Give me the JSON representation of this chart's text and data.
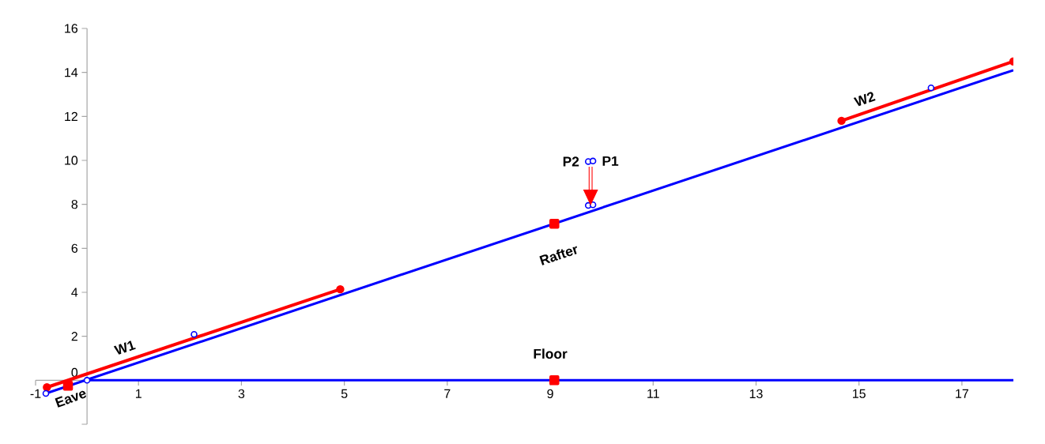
{
  "chart_data": {
    "type": "line",
    "xlim": [
      -1,
      18
    ],
    "ylim": [
      -2,
      16
    ],
    "xticks": [
      -1,
      1,
      3,
      5,
      7,
      9,
      11,
      13,
      15,
      17
    ],
    "yticks": [
      {
        "value": -2,
        "label": null
      },
      0,
      2,
      4,
      6,
      8,
      10,
      12,
      14,
      16
    ],
    "grid": false,
    "series": [
      {
        "name": "Rafter",
        "color": "#0000ff",
        "x": [
          -0.8,
          18
        ],
        "values": [
          -0.6,
          14.1
        ],
        "marker": "none"
      },
      {
        "name": "Floor",
        "color": "#0000ff",
        "x": [
          0,
          18
        ],
        "values": [
          0,
          0
        ],
        "marker": "none"
      },
      {
        "name": "W1",
        "color": "#ff0000",
        "x": [
          -0.78,
          4.92
        ],
        "values": [
          -0.32,
          4.14
        ],
        "marker": "circle"
      },
      {
        "name": "W2",
        "color": "#ff0000",
        "x": [
          14.66,
          18
        ],
        "values": [
          11.8,
          14.5
        ],
        "marker": "circle"
      },
      {
        "type": "scatter",
        "color": "#0000ff",
        "x": [
          -0.8,
          0,
          2.08,
          16.4,
          9.74,
          9.83,
          9.74,
          9.83
        ],
        "values": [
          -0.6,
          0,
          2.09,
          13.3,
          9.95,
          9.97,
          7.95,
          7.98
        ],
        "marker": "circle"
      },
      {
        "type": "scatter",
        "color": "#ff0000",
        "x": [
          -0.37,
          9.08,
          9.08
        ],
        "values": [
          -0.25,
          7.12,
          0
        ],
        "marker": "square"
      }
    ],
    "annotations": [
      {
        "text": "Eave",
        "x": -0.8,
        "y": -0.6
      },
      {
        "text": "P2",
        "x": 9.74,
        "y": 9.95
      },
      {
        "text": "P1",
        "x": 9.83,
        "y": 9.97
      }
    ]
  }
}
